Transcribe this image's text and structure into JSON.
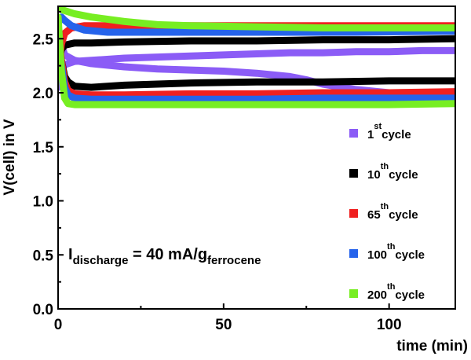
{
  "chart_data": {
    "type": "line",
    "title": "",
    "xlabel": "time (min)",
    "ylabel": "V(cell) in V",
    "xlim": [
      0,
      120
    ],
    "ylim": [
      0.0,
      2.8
    ],
    "grid": false,
    "x_ticks": [
      "0",
      "50",
      "100"
    ],
    "y_ticks": [
      "0.0",
      "0.5",
      "1.0",
      "1.5",
      "2.0",
      "2.5"
    ],
    "annotation": {
      "main": "I",
      "sub1": "discharge",
      "middle": " = 40 mA/g",
      "sub2": "ferrocene"
    },
    "legend_position": "right",
    "series": [
      {
        "name": "1st cycle",
        "label_num": "1",
        "label_sup": "st",
        "label_word": "cycle",
        "color": "#8b5cf6",
        "charge": {
          "x": [
            0,
            1,
            2,
            5,
            10,
            20,
            30,
            40,
            50,
            60,
            70,
            80,
            90,
            100,
            110,
            120
          ],
          "y": [
            2.05,
            2.2,
            2.26,
            2.29,
            2.3,
            2.32,
            2.33,
            2.34,
            2.35,
            2.36,
            2.37,
            2.37,
            2.38,
            2.38,
            2.39,
            2.39
          ]
        },
        "discharge": {
          "x": [
            0,
            1,
            2,
            5,
            10,
            20,
            30,
            40,
            50,
            60,
            70,
            75,
            80,
            90,
            100,
            110,
            120
          ],
          "y": [
            2.6,
            2.45,
            2.35,
            2.3,
            2.27,
            2.24,
            2.22,
            2.21,
            2.2,
            2.18,
            2.15,
            2.12,
            2.08,
            2.03,
            2.0,
            1.98,
            1.96
          ]
        }
      },
      {
        "name": "10th cycle",
        "label_num": "10",
        "label_sup": "th",
        "label_word": "cycle",
        "color": "#000000",
        "charge": {
          "x": [
            0,
            1,
            2,
            5,
            10,
            20,
            40,
            60,
            80,
            100,
            120
          ],
          "y": [
            2.25,
            2.4,
            2.44,
            2.46,
            2.46,
            2.47,
            2.48,
            2.48,
            2.49,
            2.49,
            2.5
          ]
        },
        "discharge": {
          "x": [
            0,
            1,
            2,
            3,
            5,
            10,
            20,
            40,
            60,
            80,
            100,
            120
          ],
          "y": [
            2.5,
            2.3,
            2.15,
            2.1,
            2.06,
            2.05,
            2.07,
            2.09,
            2.1,
            2.1,
            2.11,
            2.11
          ]
        }
      },
      {
        "name": "65th cycle",
        "label_num": "65",
        "label_sup": "th",
        "label_word": "cycle",
        "color": "#f02020",
        "charge": {
          "x": [
            0,
            1,
            2,
            4,
            8,
            15,
            30,
            60,
            90,
            120
          ],
          "y": [
            2.2,
            2.45,
            2.55,
            2.6,
            2.62,
            2.62,
            2.62,
            2.62,
            2.62,
            2.62
          ]
        },
        "discharge": {
          "x": [
            0,
            1,
            2,
            3,
            5,
            10,
            20,
            40,
            60,
            80,
            100,
            120
          ],
          "y": [
            2.6,
            2.3,
            2.1,
            2.02,
            1.99,
            1.98,
            1.98,
            1.99,
            1.99,
            2.0,
            2.0,
            2.01
          ]
        }
      },
      {
        "name": "100th cycle",
        "label_num": "100",
        "label_sup": "th",
        "label_word": "cycle",
        "color": "#2563eb",
        "charge": {
          "x": [
            0,
            1,
            2,
            4,
            8,
            15,
            30,
            60,
            90,
            120
          ],
          "y": [
            2.65,
            2.7,
            2.67,
            2.62,
            2.58,
            2.56,
            2.56,
            2.56,
            2.56,
            2.57
          ]
        },
        "discharge": {
          "x": [
            0,
            1,
            2,
            3,
            5,
            10,
            20,
            40,
            60,
            80,
            100,
            120
          ],
          "y": [
            2.55,
            2.25,
            2.05,
            1.98,
            1.95,
            1.94,
            1.94,
            1.94,
            1.94,
            1.95,
            1.95,
            1.95
          ]
        }
      },
      {
        "name": "200th cycle",
        "label_num": "200",
        "label_sup": "th",
        "label_word": "cycle",
        "color": "#77ee22",
        "charge": {
          "x": [
            0,
            2,
            5,
            10,
            20,
            30,
            40,
            60,
            80,
            100,
            120
          ],
          "y": [
            2.78,
            2.76,
            2.73,
            2.7,
            2.66,
            2.63,
            2.62,
            2.61,
            2.6,
            2.6,
            2.6
          ]
        },
        "discharge": {
          "x": [
            0,
            1,
            2,
            3,
            5,
            10,
            20,
            40,
            60,
            80,
            100,
            120
          ],
          "y": [
            2.7,
            2.2,
            1.95,
            1.9,
            1.89,
            1.89,
            1.89,
            1.89,
            1.89,
            1.89,
            1.89,
            1.9
          ]
        }
      }
    ]
  }
}
